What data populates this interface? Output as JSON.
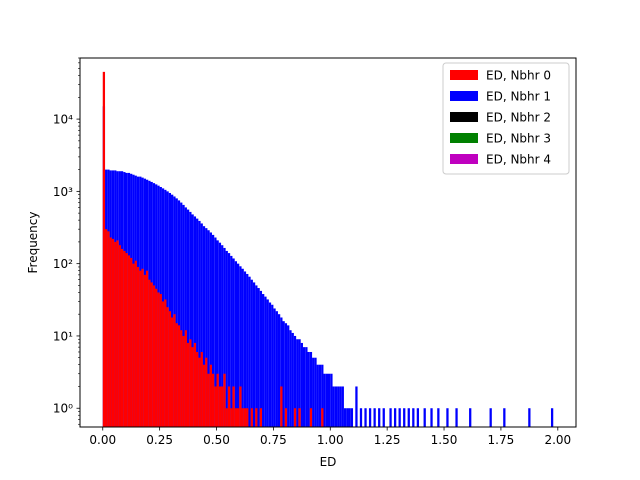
{
  "chart_data": {
    "type": "bar",
    "subtype": "histogram",
    "xlabel": "ED",
    "ylabel": "Frequency",
    "xlim": [
      -0.1,
      2.08
    ],
    "ylim": [
      0.55,
      70000
    ],
    "y_scale": "log",
    "grid": false,
    "legend_position": "top-right",
    "x_ticks": [
      "0.00",
      "0.25",
      "0.50",
      "0.75",
      "1.00",
      "1.25",
      "1.50",
      "1.75",
      "2.00"
    ],
    "y_ticks": [
      {
        "value": 1,
        "label": "10⁰"
      },
      {
        "value": 10,
        "label": "10¹"
      },
      {
        "value": 100,
        "label": "10²"
      },
      {
        "value": 1000,
        "label": "10³"
      },
      {
        "value": 10000,
        "label": "10⁴"
      }
    ],
    "bin_width": 0.01,
    "series": [
      {
        "name": "ED, Nbhr 0",
        "color": "#ff0000",
        "bins": [
          [
            0.0,
            45000
          ],
          [
            0.01,
            300
          ],
          [
            0.02,
            280
          ],
          [
            0.03,
            230
          ],
          [
            0.04,
            220
          ],
          [
            0.05,
            200
          ],
          [
            0.06,
            210
          ],
          [
            0.07,
            180
          ],
          [
            0.08,
            160
          ],
          [
            0.09,
            150
          ],
          [
            0.1,
            140
          ],
          [
            0.11,
            130
          ],
          [
            0.12,
            120
          ],
          [
            0.13,
            100
          ],
          [
            0.14,
            110
          ],
          [
            0.15,
            90
          ],
          [
            0.16,
            80
          ],
          [
            0.17,
            85
          ],
          [
            0.18,
            70
          ],
          [
            0.19,
            80
          ],
          [
            0.2,
            60
          ],
          [
            0.21,
            55
          ],
          [
            0.22,
            50
          ],
          [
            0.23,
            45
          ],
          [
            0.24,
            40
          ],
          [
            0.25,
            38
          ],
          [
            0.26,
            30
          ],
          [
            0.27,
            32
          ],
          [
            0.28,
            25
          ],
          [
            0.29,
            22
          ],
          [
            0.3,
            18
          ],
          [
            0.31,
            20
          ],
          [
            0.32,
            15
          ],
          [
            0.33,
            14
          ],
          [
            0.34,
            12
          ],
          [
            0.35,
            10
          ],
          [
            0.36,
            12
          ],
          [
            0.37,
            8
          ],
          [
            0.38,
            9
          ],
          [
            0.39,
            7
          ],
          [
            0.4,
            8
          ],
          [
            0.41,
            6
          ],
          [
            0.42,
            5
          ],
          [
            0.43,
            6
          ],
          [
            0.44,
            4
          ],
          [
            0.45,
            5
          ],
          [
            0.46,
            3
          ],
          [
            0.47,
            4
          ],
          [
            0.48,
            3
          ],
          [
            0.49,
            2
          ],
          [
            0.5,
            3
          ],
          [
            0.51,
            2
          ],
          [
            0.52,
            2
          ],
          [
            0.53,
            3
          ],
          [
            0.54,
            1
          ],
          [
            0.55,
            2
          ],
          [
            0.56,
            1
          ],
          [
            0.57,
            2
          ],
          [
            0.58,
            1
          ],
          [
            0.59,
            1
          ],
          [
            0.6,
            2
          ],
          [
            0.61,
            1
          ],
          [
            0.62,
            1
          ],
          [
            0.63,
            1
          ],
          [
            0.65,
            1
          ],
          [
            0.67,
            1
          ],
          [
            0.69,
            1
          ],
          [
            0.78,
            2
          ],
          [
            0.8,
            1
          ],
          [
            0.84,
            1
          ],
          [
            0.86,
            1
          ],
          [
            0.91,
            1
          ],
          [
            0.96,
            1
          ]
        ]
      },
      {
        "name": "ED, Nbhr 1",
        "color": "#0000ff",
        "bins": [
          [
            0.0,
            15000
          ],
          [
            0.01,
            2000
          ],
          [
            0.02,
            2000
          ],
          [
            0.03,
            1950
          ],
          [
            0.04,
            1950
          ],
          [
            0.05,
            1950
          ],
          [
            0.06,
            1900
          ],
          [
            0.07,
            1900
          ],
          [
            0.08,
            1900
          ],
          [
            0.09,
            1850
          ],
          [
            0.1,
            1800
          ],
          [
            0.11,
            1800
          ],
          [
            0.12,
            1750
          ],
          [
            0.13,
            1700
          ],
          [
            0.14,
            1650
          ],
          [
            0.15,
            1600
          ],
          [
            0.16,
            1600
          ],
          [
            0.17,
            1550
          ],
          [
            0.18,
            1500
          ],
          [
            0.19,
            1450
          ],
          [
            0.2,
            1400
          ],
          [
            0.21,
            1350
          ],
          [
            0.22,
            1300
          ],
          [
            0.23,
            1250
          ],
          [
            0.24,
            1200
          ],
          [
            0.25,
            1150
          ],
          [
            0.26,
            1100
          ],
          [
            0.27,
            1050
          ],
          [
            0.28,
            1000
          ],
          [
            0.29,
            950
          ],
          [
            0.3,
            900
          ],
          [
            0.31,
            850
          ],
          [
            0.32,
            800
          ],
          [
            0.33,
            750
          ],
          [
            0.34,
            700
          ],
          [
            0.35,
            650
          ],
          [
            0.36,
            600
          ],
          [
            0.37,
            560
          ],
          [
            0.38,
            520
          ],
          [
            0.39,
            480
          ],
          [
            0.4,
            450
          ],
          [
            0.41,
            420
          ],
          [
            0.42,
            390
          ],
          [
            0.43,
            360
          ],
          [
            0.44,
            330
          ],
          [
            0.45,
            310
          ],
          [
            0.46,
            290
          ],
          [
            0.47,
            270
          ],
          [
            0.48,
            250
          ],
          [
            0.49,
            230
          ],
          [
            0.5,
            210
          ],
          [
            0.51,
            195
          ],
          [
            0.52,
            180
          ],
          [
            0.53,
            165
          ],
          [
            0.54,
            150
          ],
          [
            0.55,
            140
          ],
          [
            0.56,
            128
          ],
          [
            0.57,
            118
          ],
          [
            0.58,
            108
          ],
          [
            0.59,
            100
          ],
          [
            0.6,
            92
          ],
          [
            0.61,
            85
          ],
          [
            0.62,
            78
          ],
          [
            0.63,
            72
          ],
          [
            0.64,
            66
          ],
          [
            0.65,
            60
          ],
          [
            0.66,
            55
          ],
          [
            0.67,
            50
          ],
          [
            0.68,
            46
          ],
          [
            0.69,
            42
          ],
          [
            0.7,
            38
          ],
          [
            0.71,
            35
          ],
          [
            0.72,
            32
          ],
          [
            0.73,
            29
          ],
          [
            0.74,
            27
          ],
          [
            0.75,
            24
          ],
          [
            0.76,
            22
          ],
          [
            0.77,
            20
          ],
          [
            0.78,
            18
          ],
          [
            0.79,
            16
          ],
          [
            0.8,
            15
          ],
          [
            0.81,
            14
          ],
          [
            0.82,
            12
          ],
          [
            0.83,
            11
          ],
          [
            0.84,
            10
          ],
          [
            0.85,
            9
          ],
          [
            0.86,
            9
          ],
          [
            0.87,
            8
          ],
          [
            0.88,
            7
          ],
          [
            0.89,
            7
          ],
          [
            0.9,
            6
          ],
          [
            0.91,
            6
          ],
          [
            0.92,
            5
          ],
          [
            0.93,
            5
          ],
          [
            0.94,
            4
          ],
          [
            0.95,
            4
          ],
          [
            0.96,
            4
          ],
          [
            0.97,
            3
          ],
          [
            0.98,
            3
          ],
          [
            0.99,
            3
          ],
          [
            1.0,
            3
          ],
          [
            1.01,
            2
          ],
          [
            1.02,
            2
          ],
          [
            1.03,
            2
          ],
          [
            1.04,
            2
          ],
          [
            1.05,
            2
          ],
          [
            1.06,
            1
          ],
          [
            1.07,
            1
          ],
          [
            1.08,
            1
          ],
          [
            1.09,
            1
          ],
          [
            1.11,
            2
          ],
          [
            1.13,
            1
          ],
          [
            1.15,
            1
          ],
          [
            1.17,
            1
          ],
          [
            1.19,
            1
          ],
          [
            1.21,
            1
          ],
          [
            1.23,
            1
          ],
          [
            1.26,
            1
          ],
          [
            1.28,
            1
          ],
          [
            1.3,
            1
          ],
          [
            1.32,
            1
          ],
          [
            1.34,
            1
          ],
          [
            1.36,
            1
          ],
          [
            1.38,
            1
          ],
          [
            1.41,
            1
          ],
          [
            1.44,
            1
          ],
          [
            1.47,
            1
          ],
          [
            1.51,
            1
          ],
          [
            1.55,
            1
          ],
          [
            1.61,
            1
          ],
          [
            1.7,
            1
          ],
          [
            1.76,
            1
          ],
          [
            1.87,
            1
          ],
          [
            1.97,
            1
          ]
        ]
      },
      {
        "name": "ED, Nbhr 2",
        "color": "#000000",
        "bins": []
      },
      {
        "name": "ED, Nbhr 3",
        "color": "#008000",
        "bins": []
      },
      {
        "name": "ED, Nbhr 4",
        "color": "#bf00bf",
        "bins": []
      }
    ]
  }
}
